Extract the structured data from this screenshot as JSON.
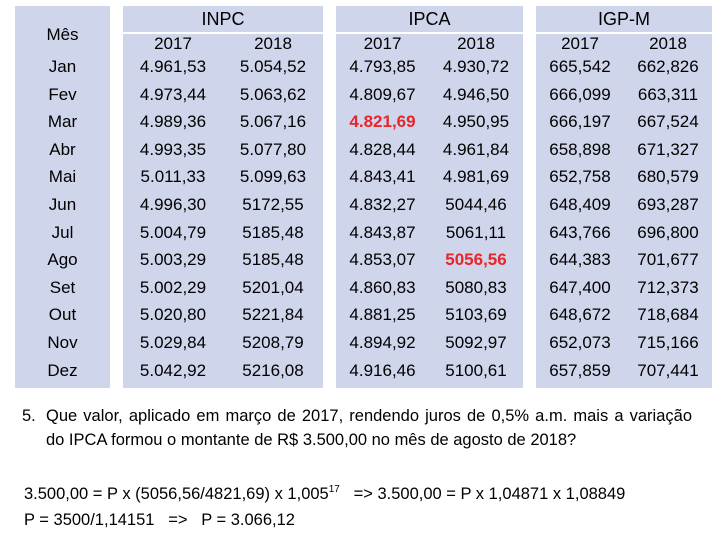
{
  "table": {
    "month_header": "Mês",
    "months": [
      "Jan",
      "Fev",
      "Mar",
      "Abr",
      "Mai",
      "Jun",
      "Jul",
      "Ago",
      "Set",
      "Out",
      "Nov",
      "Dez"
    ],
    "groups": [
      {
        "name": "INPC",
        "years": [
          "2017",
          "2018"
        ],
        "col_2017": [
          "4.961,53",
          "4.973,44",
          "4.989,36",
          "4.993,35",
          "5.011,33",
          "4.996,30",
          "5.004,79",
          "5.003,29",
          "5.002,29",
          "5.020,80",
          "5.029,84",
          "5.042,92"
        ],
        "col_2018": [
          "5.054,52",
          "5.063,62",
          "5.067,16",
          "5.077,80",
          "5.099,63",
          "5172,55",
          "5185,48",
          "5185,48",
          "5201,04",
          "5221,84",
          "5208,79",
          "5216,08"
        ]
      },
      {
        "name": "IPCA",
        "years": [
          "2017",
          "2018"
        ],
        "col_2017": [
          "4.793,85",
          "4.809,67",
          "4.821,69",
          "4.828,44",
          "4.843,41",
          "4.832,27",
          "4.843,87",
          "4.853,07",
          "4.860,83",
          "4.881,25",
          "4.894,92",
          "4.916,46"
        ],
        "col_2018": [
          "4.930,72",
          "4.946,50",
          "4.950,95",
          "4.961,84",
          "4.981,69",
          "5044,46",
          "5061,11",
          "5056,56",
          "5080,83",
          "5103,69",
          "5092,97",
          "5100,61"
        ]
      },
      {
        "name": "IGP-M",
        "years": [
          "2017",
          "2018"
        ],
        "col_2017": [
          "665,542",
          "666,099",
          "666,197",
          "658,898",
          "652,758",
          "648,409",
          "643,766",
          "644,383",
          "647,400",
          "648,672",
          "652,073",
          "657,859"
        ],
        "col_2018": [
          "662,826",
          "663,311",
          "667,524",
          "671,327",
          "680,579",
          "693,287",
          "696,800",
          "701,677",
          "712,373",
          "718,684",
          "715,166",
          "707,441"
        ]
      }
    ],
    "highlight_color": "#e8262a",
    "block_color": "#cfd5ea"
  },
  "question": {
    "number": "5.",
    "text": "Que valor, aplicado em março de 2017, rendendo juros de 0,5% a.m. mais a variação do IPCA formou o montante de R$ 3.500,00 no mês de agosto de 2018?"
  },
  "solution": {
    "line1_a": "3.500,00 = P x (5056,56/4821,69) x 1,005",
    "line1_exp": "17",
    "line1_b": "   => 3.500,00 = P x 1,04871 x 1,08849",
    "line2": "P = 3500/1,14151   =>   P = 3.066,12"
  }
}
